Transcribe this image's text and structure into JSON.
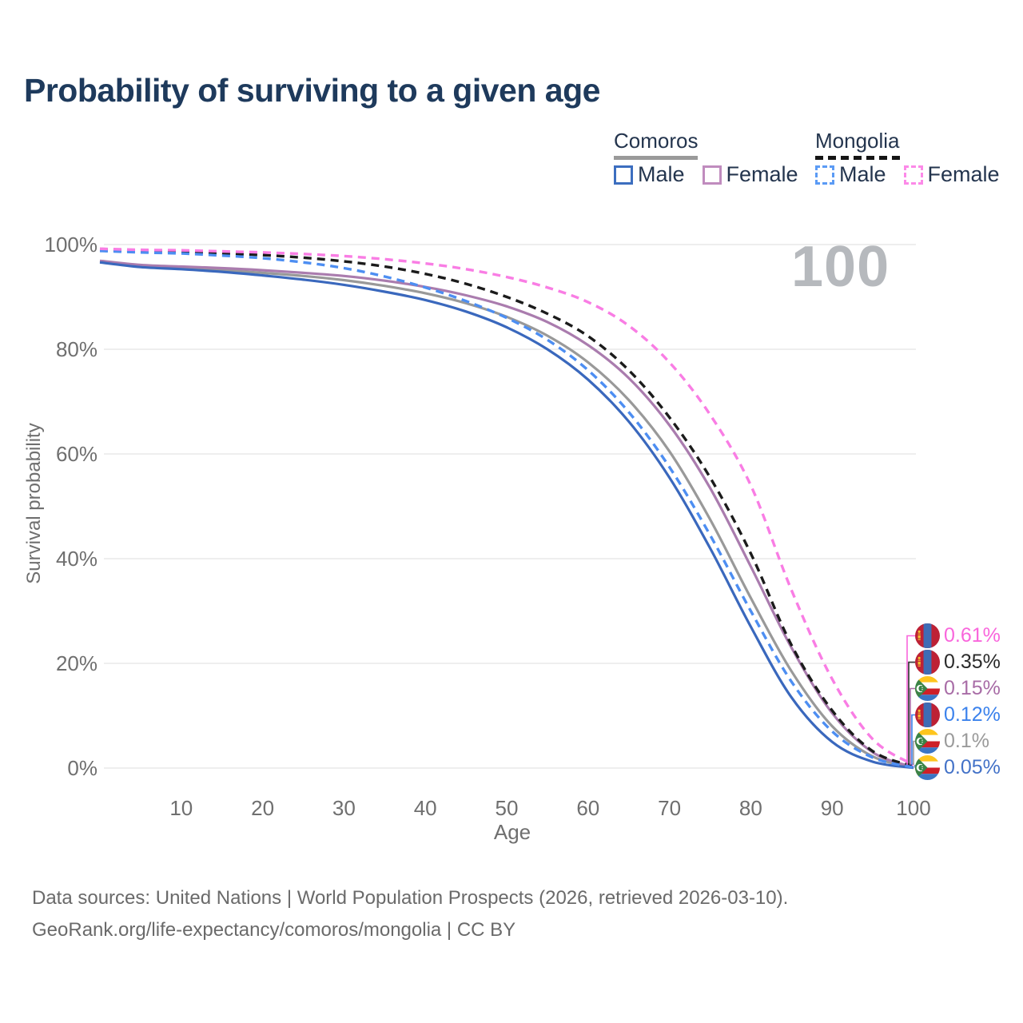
{
  "header": {
    "title": "Probability of surviving to a given age"
  },
  "legend": {
    "groups": [
      {
        "title": "Comoros",
        "style": "solid",
        "items": [
          {
            "label": "Male",
            "color": "#3c6ebf"
          },
          {
            "label": "Female",
            "color": "#c08cbe"
          }
        ]
      },
      {
        "title": "Mongolia",
        "style": "dashed",
        "items": [
          {
            "label": "Male",
            "color": "#5b9bf5"
          },
          {
            "label": "Female",
            "color": "#fc8ae8"
          }
        ]
      }
    ]
  },
  "watermark": {
    "text": "100",
    "color": "#b6b9bd"
  },
  "chart_data": {
    "type": "line",
    "title": "Probability of surviving to a given age",
    "xlabel": "Age",
    "ylabel": "Survival probability",
    "xlim": [
      0,
      100
    ],
    "ylim": [
      0,
      100
    ],
    "grid": "horizontal",
    "x_ticks": [
      10,
      20,
      30,
      40,
      50,
      60,
      70,
      80,
      90,
      100
    ],
    "y_ticks": [
      {
        "label": "0%",
        "value": 0
      },
      {
        "label": "20%",
        "value": 20
      },
      {
        "label": "40%",
        "value": 40
      },
      {
        "label": "60%",
        "value": 60
      },
      {
        "label": "80%",
        "value": 80
      },
      {
        "label": "100%",
        "value": 100
      }
    ],
    "x": [
      0,
      5,
      10,
      15,
      20,
      25,
      30,
      35,
      40,
      45,
      50,
      55,
      60,
      65,
      70,
      75,
      80,
      85,
      90,
      95,
      100
    ],
    "series": [
      {
        "name": "Comoros All",
        "country": "Comoros",
        "group": "All",
        "style": "solid",
        "color": "#999999",
        "end_label": "0.1%",
        "values": [
          96.8,
          95.9,
          95.5,
          95.1,
          94.6,
          94.0,
          93.2,
          92.1,
          90.7,
          88.8,
          86.2,
          82.6,
          77.5,
          70.3,
          60.5,
          47.5,
          32.5,
          18.5,
          8.0,
          2.2,
          0.1
        ]
      },
      {
        "name": "Comoros Female",
        "country": "Comoros",
        "group": "Female",
        "style": "solid",
        "color": "#aa7cae",
        "end_label": "0.15%",
        "values": [
          96.9,
          96.1,
          95.8,
          95.5,
          95.1,
          94.6,
          94.0,
          93.1,
          91.9,
          90.3,
          88.2,
          85.2,
          80.8,
          74.5,
          65.5,
          53.5,
          38.5,
          23.0,
          10.5,
          3.0,
          0.15
        ]
      },
      {
        "name": "Comoros Male",
        "country": "Comoros",
        "group": "Male",
        "style": "solid",
        "color": "#3a68bd",
        "end_label": "0.05%",
        "values": [
          96.6,
          95.7,
          95.3,
          94.8,
          94.1,
          93.3,
          92.3,
          91.0,
          89.4,
          87.2,
          84.2,
          80.0,
          74.2,
          66.2,
          55.5,
          42.0,
          27.0,
          13.5,
          5.0,
          1.2,
          0.05
        ]
      },
      {
        "name": "Mongolia All",
        "country": "Mongolia",
        "group": "All",
        "style": "dashed",
        "color": "#1b1b1b",
        "end_label": "0.35%",
        "values": [
          99.0,
          98.8,
          98.6,
          98.3,
          98.0,
          97.5,
          96.8,
          95.8,
          94.4,
          92.5,
          90.0,
          86.8,
          82.5,
          76.0,
          67.0,
          55.5,
          41.0,
          23.5,
          11.0,
          3.2,
          0.35
        ]
      },
      {
        "name": "Mongolia Male",
        "country": "Mongolia",
        "group": "Male",
        "style": "dashed",
        "color": "#4d8ef2",
        "end_label": "0.12%",
        "values": [
          98.8,
          98.5,
          98.3,
          97.9,
          97.4,
          96.6,
          95.5,
          93.9,
          91.8,
          89.2,
          86.0,
          81.8,
          76.0,
          68.0,
          57.5,
          44.5,
          30.0,
          16.5,
          7.0,
          2.0,
          0.12
        ]
      },
      {
        "name": "Mongolia Female",
        "country": "Mongolia",
        "group": "Female",
        "style": "dashed",
        "color": "#f97de4",
        "end_label": "0.61%",
        "values": [
          99.2,
          99.0,
          98.9,
          98.7,
          98.5,
          98.2,
          97.8,
          97.2,
          96.4,
          95.3,
          93.8,
          91.8,
          89.0,
          84.5,
          77.5,
          67.5,
          54.0,
          34.0,
          17.0,
          5.5,
          0.61
        ]
      }
    ]
  },
  "right_labels": [
    {
      "label": "0.61%",
      "color": "#f966dc",
      "flag": "mongolia",
      "series": "Mongolia Female"
    },
    {
      "label": "0.35%",
      "color": "#2a2a2a",
      "flag": "mongolia",
      "series": "Mongolia All"
    },
    {
      "label": "0.15%",
      "color": "#a86ca6",
      "flag": "comoros",
      "series": "Comoros Female"
    },
    {
      "label": "0.12%",
      "color": "#3b82ec",
      "flag": "mongolia",
      "series": "Mongolia Male"
    },
    {
      "label": "0.1%",
      "color": "#9a9a9a",
      "flag": "comoros",
      "series": "Comoros All"
    },
    {
      "label": "0.05%",
      "color": "#4372c8",
      "flag": "comoros",
      "series": "Comoros Male"
    }
  ],
  "footer": {
    "line1": "Data sources: United Nations | World Population Prospects (2026, retrieved 2026-03-10).",
    "line2": "GeoRank.org/life-expectancy/comoros/mongolia | CC BY"
  }
}
